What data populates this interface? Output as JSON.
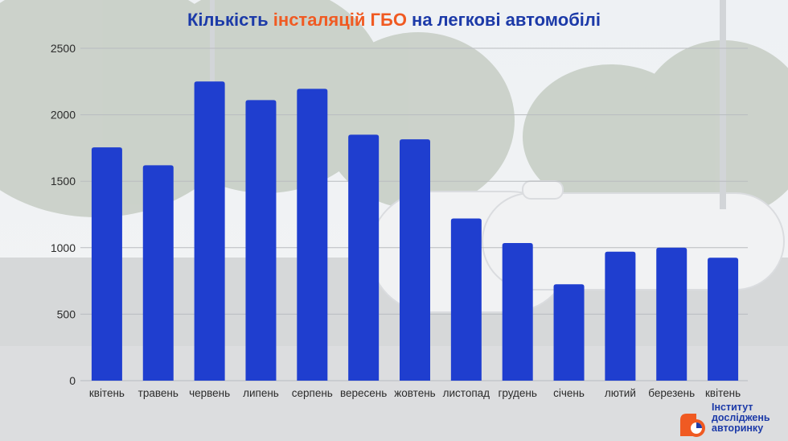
{
  "title": {
    "part1": "Кількість ",
    "accent": "інсталяцій ГБО",
    "part2": " на легкові автомобілі"
  },
  "colors": {
    "bar": "#1f3ecf",
    "title": "#1c3aa8",
    "accent": "#f05a22",
    "axis_text": "#2b2b2b"
  },
  "chart_data": {
    "type": "bar",
    "title": "Кількість інсталяцій ГБО на легкові автомобілі",
    "categories": [
      "квітень",
      "травень",
      "червень",
      "липень",
      "серпень",
      "вересень",
      "жовтень",
      "листопад",
      "грудень",
      "січень",
      "лютий",
      "березень",
      "квітень"
    ],
    "values": [
      1755,
      1620,
      2250,
      2110,
      2195,
      1850,
      1815,
      1220,
      1035,
      725,
      970,
      1000,
      925
    ],
    "ylim": [
      0,
      2500
    ],
    "yticks": [
      0,
      500,
      1000,
      1500,
      2000,
      2500
    ],
    "grid": true,
    "xlabel": "",
    "ylabel": ""
  },
  "logo": {
    "line1": "Інститут",
    "line2": "досліджень",
    "line3": "авторинку"
  }
}
